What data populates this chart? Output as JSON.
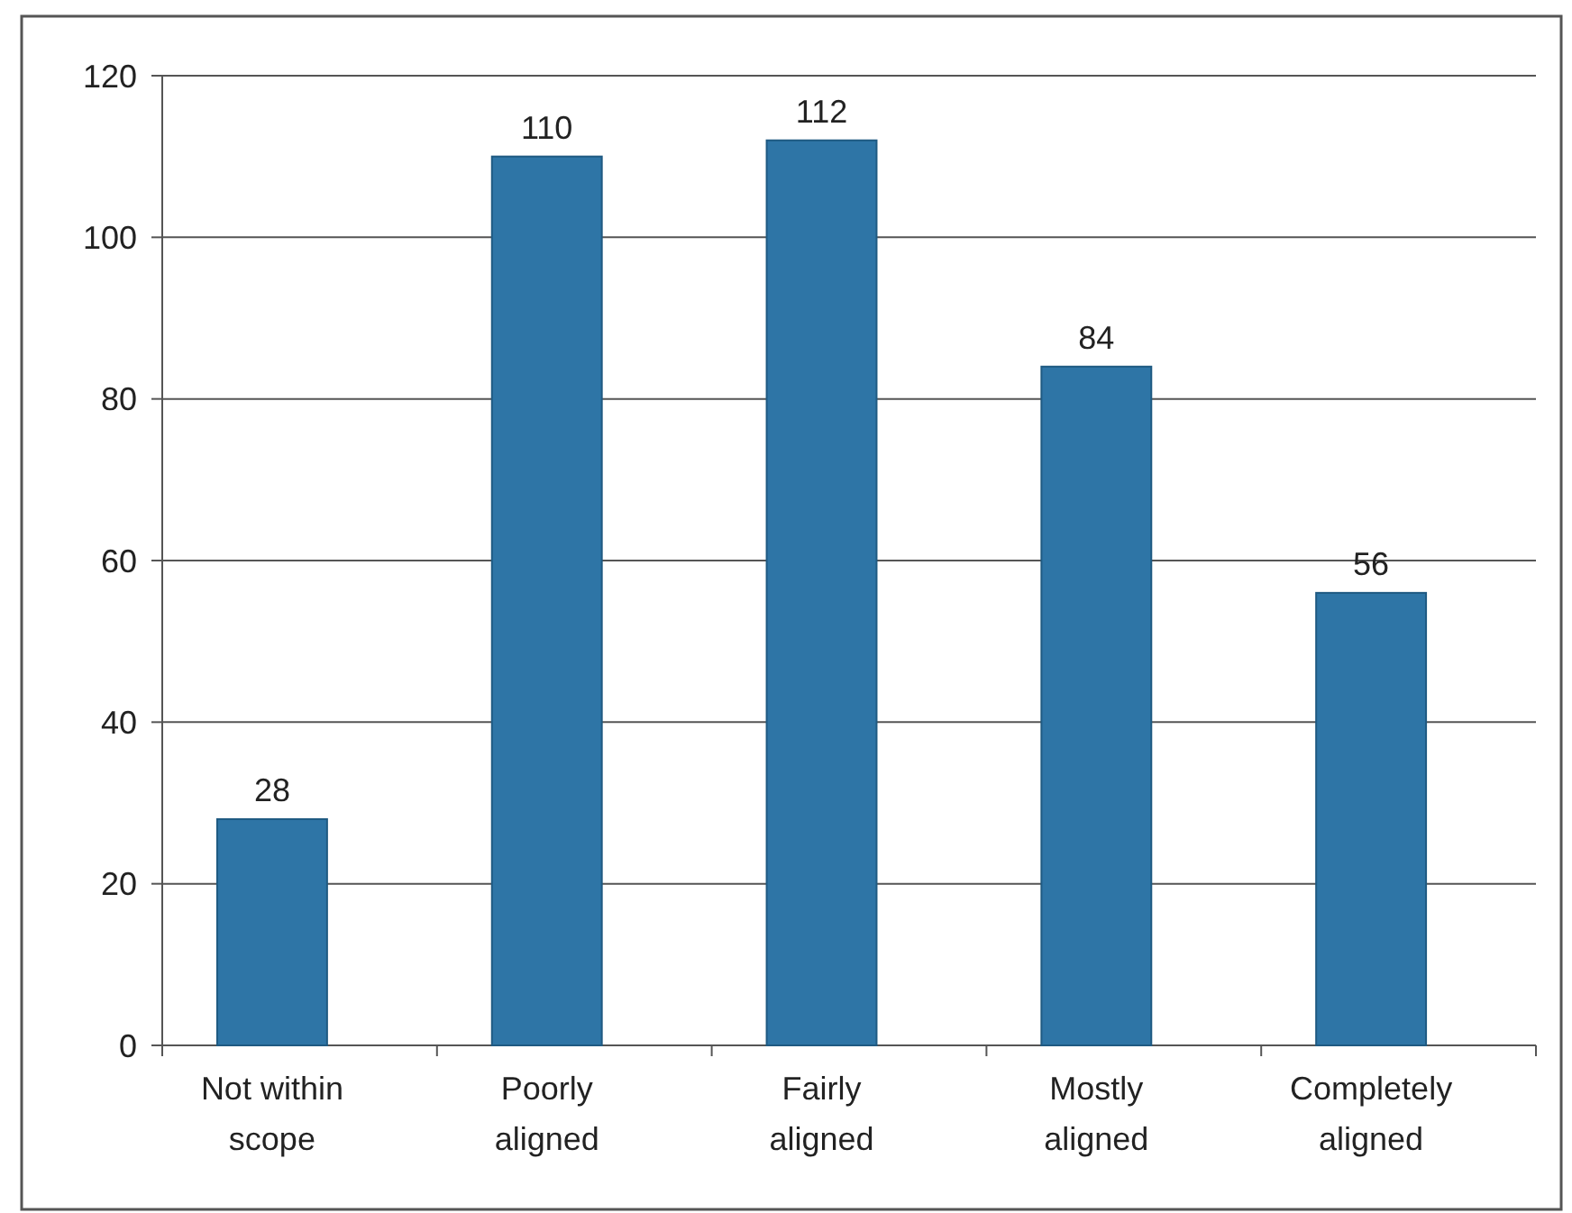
{
  "chart_data": {
    "type": "bar",
    "categories": [
      "Not within scope",
      "Poorly aligned",
      "Fairly aligned",
      "Mostly aligned",
      "Completely aligned"
    ],
    "values": [
      28,
      110,
      112,
      84,
      56
    ],
    "color": "#2e75a6",
    "ylim": [
      0,
      120
    ],
    "yticks": [
      0,
      20,
      40,
      60,
      80,
      100,
      120
    ],
    "grid": "y",
    "data_labels": true
  }
}
